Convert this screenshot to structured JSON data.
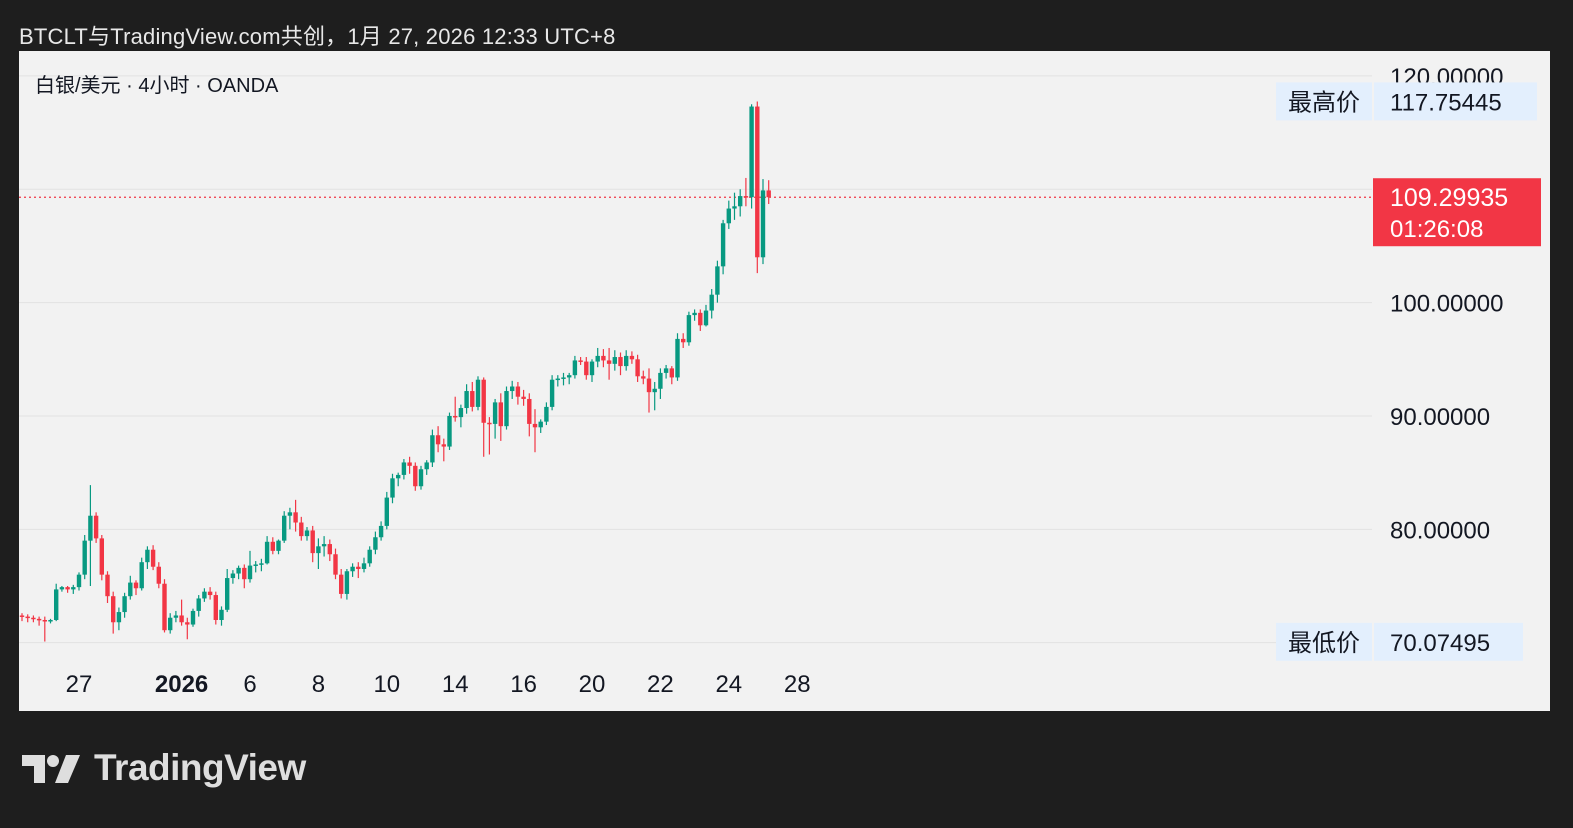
{
  "header": {
    "caption": "BTCLT与TradingView.com共创，1月 27, 2026 12:33 UTC+8"
  },
  "footer": {
    "brand": "TradingView"
  },
  "chart_data": {
    "type": "candlestick",
    "title": "白银/美元 · 4小时 · OANDA",
    "symbol": "白银/美元",
    "interval": "4小时",
    "source": "OANDA",
    "ylim": [
      67.5,
      122.2
    ],
    "y_ticks": [
      {
        "value": 120,
        "label": "120.00000"
      },
      {
        "value": 100,
        "label": "100.00000"
      },
      {
        "value": 90,
        "label": "90.00000"
      },
      {
        "value": 80,
        "label": "80.00000"
      }
    ],
    "x_ticks": [
      {
        "label": "27",
        "bar": 10,
        "bold": false
      },
      {
        "label": "2026",
        "bar": 28,
        "bold": true
      },
      {
        "label": "6",
        "bar": 40,
        "bold": false
      },
      {
        "label": "8",
        "bar": 52,
        "bold": false
      },
      {
        "label": "10",
        "bar": 64,
        "bold": false
      },
      {
        "label": "14",
        "bar": 76,
        "bold": false
      },
      {
        "label": "16",
        "bar": 88,
        "bold": false
      },
      {
        "label": "20",
        "bar": 100,
        "bold": false
      },
      {
        "label": "22",
        "bar": 112,
        "bold": false
      },
      {
        "label": "24",
        "bar": 124,
        "bold": false
      },
      {
        "label": "28",
        "bar": 136,
        "bold": false
      }
    ],
    "high_marker": {
      "label": "最高价",
      "value": 117.75445,
      "value_label": "117.75445"
    },
    "low_marker": {
      "label": "最低价",
      "value": 70.07495,
      "value_label": "70.07495"
    },
    "last_price": {
      "value": 109.29935,
      "label": "109.29935",
      "countdown": "01:26:08",
      "color": "#f23645"
    },
    "up_color": "#089981",
    "down_color": "#f23645",
    "grid": true,
    "candles": [
      [
        72.4,
        72.6,
        71.9,
        72.3
      ],
      [
        72.3,
        72.5,
        71.8,
        72.2
      ],
      [
        72.2,
        72.4,
        71.8,
        72.1
      ],
      [
        72.1,
        72.3,
        71.5,
        72.0
      ],
      [
        72.0,
        72.3,
        70.1,
        71.9
      ],
      [
        71.9,
        72.1,
        71.7,
        72.0
      ],
      [
        72.0,
        75.2,
        71.9,
        74.7
      ],
      [
        74.7,
        75.0,
        74.5,
        74.9
      ],
      [
        74.9,
        75.0,
        74.4,
        74.7
      ],
      [
        74.7,
        75.1,
        74.3,
        74.9
      ],
      [
        74.9,
        76.2,
        74.6,
        76.0
      ],
      [
        76.0,
        79.5,
        75.6,
        79.0
      ],
      [
        79.0,
        83.9,
        75.0,
        81.2
      ],
      [
        81.2,
        81.5,
        78.8,
        79.2
      ],
      [
        79.2,
        79.5,
        75.5,
        76.0
      ],
      [
        76.0,
        76.3,
        73.5,
        74.1
      ],
      [
        74.1,
        74.5,
        70.8,
        71.8
      ],
      [
        71.8,
        73.1,
        71.1,
        72.7
      ],
      [
        72.7,
        74.4,
        72.2,
        74.1
      ],
      [
        74.1,
        75.9,
        73.8,
        75.3
      ],
      [
        75.3,
        75.5,
        74.2,
        74.8
      ],
      [
        74.8,
        77.5,
        74.6,
        77.1
      ],
      [
        77.1,
        78.5,
        76.5,
        78.2
      ],
      [
        78.2,
        78.6,
        76.4,
        76.7
      ],
      [
        76.7,
        77.1,
        74.8,
        75.2
      ],
      [
        75.2,
        75.6,
        70.9,
        71.1
      ],
      [
        71.1,
        72.6,
        70.8,
        72.2
      ],
      [
        72.2,
        72.8,
        71.8,
        72.4
      ],
      [
        72.4,
        73.8,
        71.5,
        71.8
      ],
      [
        71.8,
        72.2,
        70.3,
        71.6
      ],
      [
        71.6,
        73.0,
        71.4,
        72.8
      ],
      [
        72.8,
        74.2,
        72.3,
        73.9
      ],
      [
        73.9,
        74.8,
        73.6,
        74.5
      ],
      [
        74.5,
        74.9,
        73.8,
        74.2
      ],
      [
        74.2,
        74.5,
        71.6,
        72.0
      ],
      [
        72.0,
        73.2,
        71.5,
        72.9
      ],
      [
        72.9,
        76.5,
        72.7,
        75.7
      ],
      [
        75.7,
        76.4,
        75.2,
        76.1
      ],
      [
        76.1,
        76.8,
        75.6,
        76.6
      ],
      [
        76.6,
        76.9,
        74.8,
        75.6
      ],
      [
        75.6,
        78.1,
        75.3,
        76.8
      ],
      [
        76.8,
        77.2,
        76.2,
        76.9
      ],
      [
        76.9,
        77.4,
        76.3,
        77.0
      ],
      [
        77.0,
        79.4,
        76.9,
        78.9
      ],
      [
        78.9,
        79.3,
        77.8,
        78.1
      ],
      [
        78.1,
        79.1,
        77.8,
        79.0
      ],
      [
        79.0,
        81.6,
        78.8,
        81.2
      ],
      [
        81.2,
        81.9,
        80.0,
        81.5
      ],
      [
        81.5,
        82.6,
        79.8,
        80.6
      ],
      [
        80.6,
        81.1,
        79.0,
        79.4
      ],
      [
        79.4,
        80.2,
        79.0,
        79.9
      ],
      [
        79.9,
        80.3,
        77.1,
        77.9
      ],
      [
        77.9,
        79.2,
        76.5,
        78.5
      ],
      [
        78.5,
        79.4,
        77.6,
        78.7
      ],
      [
        78.7,
        79.1,
        77.2,
        77.8
      ],
      [
        77.8,
        78.3,
        75.6,
        76.0
      ],
      [
        76.0,
        76.5,
        73.9,
        74.3
      ],
      [
        74.3,
        76.5,
        73.8,
        76.3
      ],
      [
        76.3,
        77.0,
        75.8,
        76.7
      ],
      [
        76.7,
        77.1,
        75.7,
        76.5
      ],
      [
        76.5,
        77.5,
        76.2,
        77.0
      ],
      [
        77.0,
        78.5,
        76.7,
        78.2
      ],
      [
        78.2,
        79.8,
        77.8,
        79.3
      ],
      [
        79.3,
        80.7,
        79.0,
        80.3
      ],
      [
        80.3,
        83.3,
        80.0,
        82.8
      ],
      [
        82.8,
        84.9,
        82.3,
        84.5
      ],
      [
        84.5,
        85.0,
        83.8,
        84.8
      ],
      [
        84.8,
        86.2,
        84.4,
        85.9
      ],
      [
        85.9,
        86.4,
        84.9,
        85.6
      ],
      [
        85.6,
        85.9,
        83.4,
        83.8
      ],
      [
        83.8,
        85.6,
        83.5,
        85.3
      ],
      [
        85.3,
        86.1,
        84.8,
        85.9
      ],
      [
        85.9,
        88.8,
        85.5,
        88.3
      ],
      [
        88.3,
        89.1,
        86.8,
        87.5
      ],
      [
        87.5,
        88.0,
        86.0,
        87.3
      ],
      [
        87.3,
        90.3,
        87.0,
        90.0
      ],
      [
        90.0,
        91.7,
        89.5,
        89.9
      ],
      [
        89.9,
        91.0,
        89.0,
        90.7
      ],
      [
        90.7,
        92.8,
        90.2,
        92.2
      ],
      [
        92.2,
        93.0,
        90.4,
        90.8
      ],
      [
        90.8,
        93.5,
        90.5,
        93.2
      ],
      [
        93.2,
        93.4,
        86.4,
        89.4
      ],
      [
        89.4,
        89.9,
        86.6,
        89.3
      ],
      [
        89.3,
        91.5,
        88.0,
        91.2
      ],
      [
        91.2,
        92.0,
        87.8,
        89.1
      ],
      [
        89.1,
        92.6,
        88.8,
        92.2
      ],
      [
        92.2,
        93.1,
        91.5,
        92.6
      ],
      [
        92.6,
        93.0,
        91.0,
        91.7
      ],
      [
        91.7,
        92.3,
        90.9,
        91.5
      ],
      [
        91.5,
        92.0,
        88.2,
        89.3
      ],
      [
        89.3,
        90.6,
        86.8,
        89.0
      ],
      [
        89.0,
        89.7,
        88.5,
        89.5
      ],
      [
        89.5,
        91.2,
        89.2,
        90.8
      ],
      [
        90.8,
        93.6,
        90.5,
        93.2
      ],
      [
        93.2,
        93.6,
        92.6,
        93.3
      ],
      [
        93.3,
        93.8,
        92.7,
        93.4
      ],
      [
        93.4,
        93.8,
        92.8,
        93.6
      ],
      [
        93.6,
        95.3,
        93.3,
        94.9
      ],
      [
        94.9,
        95.2,
        94.5,
        94.8
      ],
      [
        94.8,
        95.2,
        93.2,
        93.6
      ],
      [
        93.6,
        95.0,
        93.0,
        94.8
      ],
      [
        94.8,
        96.0,
        94.3,
        95.3
      ],
      [
        95.3,
        95.9,
        94.3,
        94.9
      ],
      [
        94.9,
        96.0,
        93.2,
        94.6
      ],
      [
        94.6,
        95.8,
        94.0,
        95.2
      ],
      [
        95.2,
        95.6,
        93.6,
        94.4
      ],
      [
        94.4,
        95.8,
        94.0,
        95.3
      ],
      [
        95.3,
        95.7,
        94.6,
        95.0
      ],
      [
        95.0,
        95.4,
        93.0,
        93.5
      ],
      [
        93.5,
        94.0,
        92.8,
        93.3
      ],
      [
        93.3,
        94.2,
        90.3,
        92.1
      ],
      [
        92.1,
        93.0,
        90.5,
        92.4
      ],
      [
        92.4,
        94.2,
        91.5,
        93.8
      ],
      [
        93.8,
        94.5,
        93.3,
        94.2
      ],
      [
        94.2,
        94.4,
        92.8,
        93.4
      ],
      [
        93.4,
        97.3,
        93.1,
        96.8
      ],
      [
        96.8,
        97.3,
        96.0,
        96.5
      ],
      [
        96.5,
        99.2,
        96.2,
        98.9
      ],
      [
        98.9,
        99.4,
        98.4,
        99.1
      ],
      [
        99.1,
        99.4,
        97.5,
        98.0
      ],
      [
        98.0,
        99.8,
        97.9,
        99.3
      ],
      [
        99.3,
        101.2,
        98.6,
        100.7
      ],
      [
        100.7,
        103.7,
        100.0,
        103.2
      ],
      [
        103.2,
        107.3,
        102.5,
        107.0
      ],
      [
        107.0,
        109.0,
        106.5,
        108.3
      ],
      [
        108.3,
        109.7,
        107.3,
        108.5
      ],
      [
        108.5,
        110.0,
        107.6,
        109.4
      ],
      [
        109.4,
        111.0,
        108.5,
        109.3
      ],
      [
        109.3,
        117.5,
        108.3,
        117.3
      ],
      [
        117.3,
        117.75,
        102.6,
        104.0
      ],
      [
        104.0,
        110.9,
        103.4,
        109.9
      ],
      [
        109.9,
        110.8,
        108.7,
        109.29935
      ]
    ]
  }
}
